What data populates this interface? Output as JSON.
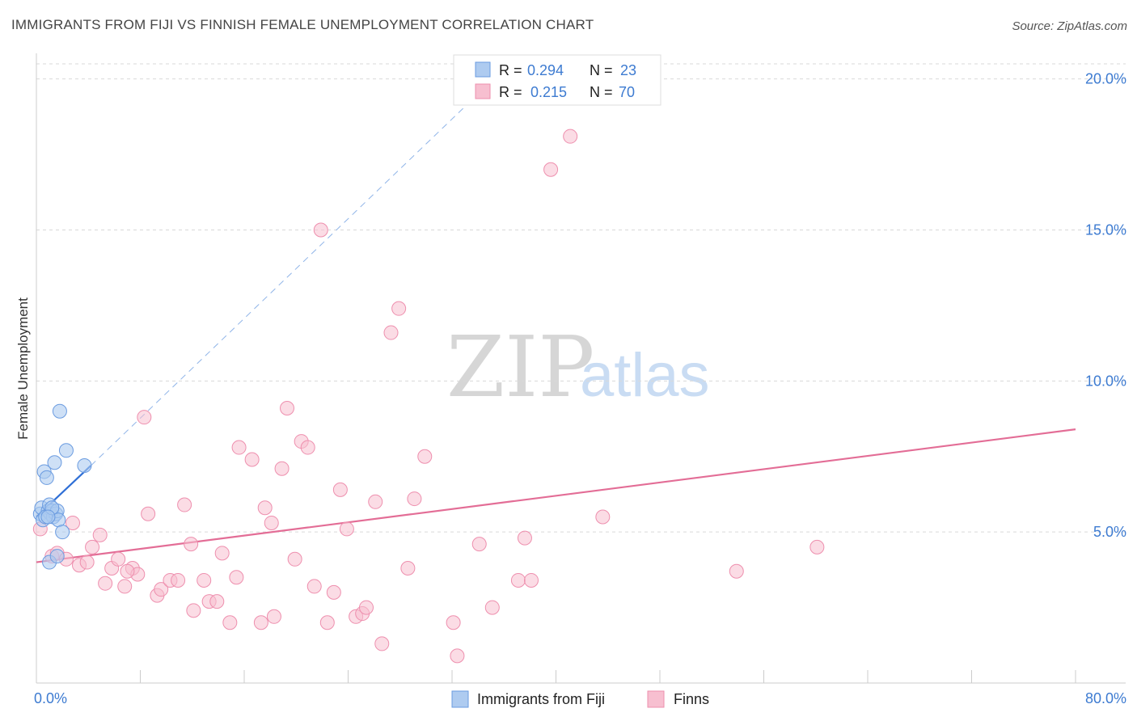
{
  "title": "IMMIGRANTS FROM FIJI VS FINNISH FEMALE UNEMPLOYMENT CORRELATION CHART",
  "source": "Source: ZipAtlas.com",
  "watermark": {
    "zip": "ZIP",
    "atlas": "atlas"
  },
  "colors": {
    "fiji_fill": "#aecbf0",
    "fiji_stroke": "#6a9be0",
    "fiji_line": "#2f6fd6",
    "finns_fill": "#f7bfd0",
    "finns_stroke": "#ee8fae",
    "finns_line": "#e36d96",
    "grid": "#d9d9d9",
    "axis_text": "#3d7bd1"
  },
  "legend_top": [
    {
      "r_label": "R =",
      "r_value": "0.294",
      "n_label": "N =",
      "n_value": "23"
    },
    {
      "r_label": "R =",
      "r_value": "0.215",
      "n_label": "N =",
      "n_value": "70"
    }
  ],
  "legend_bottom": [
    "Immigrants from Fiji",
    "Finns"
  ],
  "chart_data": {
    "type": "scatter",
    "title": "IMMIGRANTS FROM FIJI VS FINNISH FEMALE UNEMPLOYMENT CORRELATION CHART",
    "xlabel": "",
    "ylabel": "Female Unemployment",
    "xlim": [
      0,
      80
    ],
    "ylim": [
      0,
      20.5
    ],
    "x_tick_labels": [
      {
        "value": 0,
        "label": "0.0%"
      },
      {
        "value": 80,
        "label": "80.0%"
      }
    ],
    "y_tick_labels": [
      {
        "value": 5,
        "label": "5.0%"
      },
      {
        "value": 10,
        "label": "10.0%"
      },
      {
        "value": 15,
        "label": "15.0%"
      },
      {
        "value": 20,
        "label": "20.0%"
      }
    ],
    "x_minor_ticks": [
      0,
      8,
      16,
      24,
      32,
      40,
      48,
      56,
      64,
      72,
      80
    ],
    "series": [
      {
        "name": "Immigrants from Fiji",
        "R": 0.294,
        "N": 23,
        "trend": {
          "x": [
            0,
            4.2
          ],
          "y": [
            5.5,
            7.2
          ],
          "extended_x": [
            4.2,
            34
          ],
          "extended_y": [
            7.2,
            19.5
          ]
        },
        "points": [
          [
            0.3,
            5.6
          ],
          [
            0.4,
            5.8
          ],
          [
            0.5,
            5.4
          ],
          [
            0.6,
            7.0
          ],
          [
            0.8,
            6.8
          ],
          [
            0.9,
            5.7
          ],
          [
            1.0,
            5.9
          ],
          [
            1.1,
            5.6
          ],
          [
            1.2,
            5.7
          ],
          [
            1.3,
            5.5
          ],
          [
            1.4,
            7.3
          ],
          [
            1.5,
            5.6
          ],
          [
            1.6,
            5.7
          ],
          [
            1.7,
            5.4
          ],
          [
            1.8,
            9.0
          ],
          [
            2.0,
            5.0
          ],
          [
            2.3,
            7.7
          ],
          [
            3.7,
            7.2
          ],
          [
            1.0,
            4.0
          ],
          [
            1.6,
            4.2
          ],
          [
            0.7,
            5.5
          ],
          [
            1.2,
            5.8
          ],
          [
            0.9,
            5.5
          ]
        ]
      },
      {
        "name": "Finns",
        "R": 0.215,
        "N": 70,
        "trend": {
          "x": [
            0,
            80
          ],
          "y": [
            4.0,
            8.4
          ]
        },
        "points": [
          [
            0.3,
            5.1
          ],
          [
            1.2,
            4.2
          ],
          [
            1.6,
            4.3
          ],
          [
            2.3,
            4.1
          ],
          [
            2.8,
            5.3
          ],
          [
            3.3,
            3.9
          ],
          [
            3.9,
            4.0
          ],
          [
            4.3,
            4.5
          ],
          [
            4.9,
            4.9
          ],
          [
            5.3,
            3.3
          ],
          [
            5.8,
            3.8
          ],
          [
            6.3,
            4.1
          ],
          [
            6.8,
            3.2
          ],
          [
            7.4,
            3.8
          ],
          [
            7.8,
            3.6
          ],
          [
            8.3,
            8.8
          ],
          [
            8.6,
            5.6
          ],
          [
            9.3,
            2.9
          ],
          [
            9.6,
            3.1
          ],
          [
            10.3,
            3.4
          ],
          [
            10.9,
            3.4
          ],
          [
            11.4,
            5.9
          ],
          [
            11.9,
            4.6
          ],
          [
            12.1,
            2.4
          ],
          [
            12.9,
            3.4
          ],
          [
            13.3,
            2.7
          ],
          [
            13.9,
            2.7
          ],
          [
            14.3,
            4.3
          ],
          [
            14.9,
            2.0
          ],
          [
            15.4,
            3.5
          ],
          [
            15.6,
            7.8
          ],
          [
            16.6,
            7.4
          ],
          [
            17.3,
            2.0
          ],
          [
            17.6,
            5.8
          ],
          [
            18.1,
            5.3
          ],
          [
            18.3,
            2.2
          ],
          [
            18.9,
            7.1
          ],
          [
            19.3,
            9.1
          ],
          [
            19.9,
            4.1
          ],
          [
            20.4,
            8.0
          ],
          [
            20.9,
            7.8
          ],
          [
            21.4,
            3.2
          ],
          [
            21.9,
            15.0
          ],
          [
            22.4,
            2.0
          ],
          [
            22.9,
            3.0
          ],
          [
            23.4,
            6.4
          ],
          [
            23.9,
            5.1
          ],
          [
            24.6,
            2.2
          ],
          [
            25.1,
            2.3
          ],
          [
            25.4,
            2.5
          ],
          [
            26.1,
            6.0
          ],
          [
            26.6,
            1.3
          ],
          [
            27.3,
            11.6
          ],
          [
            27.9,
            12.4
          ],
          [
            28.6,
            3.8
          ],
          [
            29.1,
            6.1
          ],
          [
            29.9,
            7.5
          ],
          [
            32.1,
            2.0
          ],
          [
            32.4,
            0.9
          ],
          [
            34.1,
            4.6
          ],
          [
            35.1,
            2.5
          ],
          [
            37.1,
            3.4
          ],
          [
            37.6,
            4.8
          ],
          [
            38.1,
            3.4
          ],
          [
            39.6,
            17.0
          ],
          [
            41.1,
            18.1
          ],
          [
            43.6,
            5.5
          ],
          [
            53.9,
            3.7
          ],
          [
            60.1,
            4.5
          ],
          [
            7.0,
            3.7
          ]
        ]
      }
    ]
  }
}
